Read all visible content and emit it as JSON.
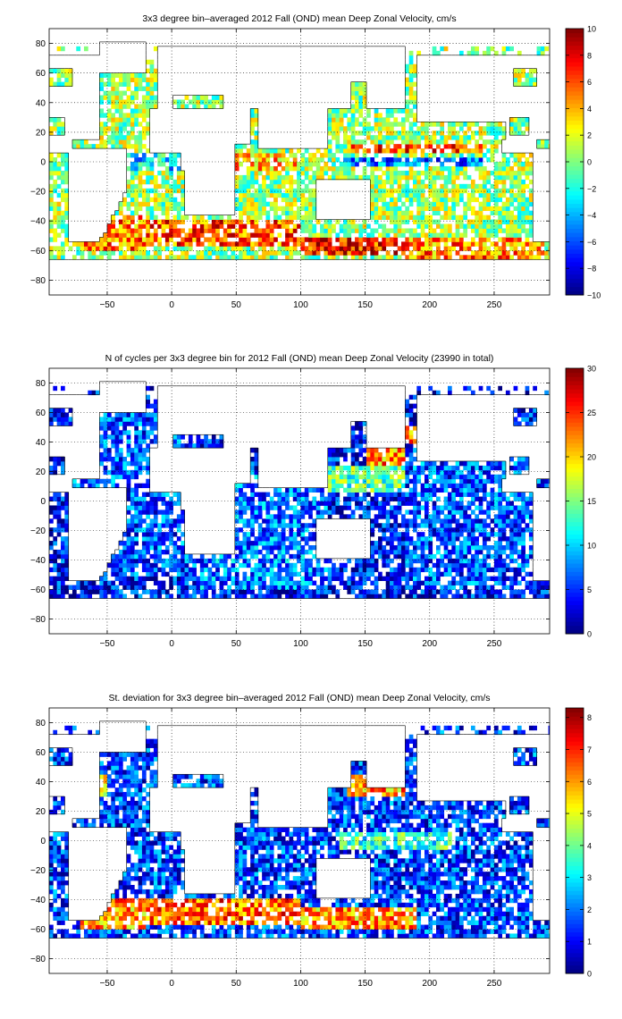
{
  "chart_data": [
    {
      "type": "heatmap",
      "title": "3x3 degree bin–averaged 2012 Fall (OND) mean Deep Zonal Velocity, cm/s",
      "xlabel": "",
      "ylabel": "",
      "xlim": [
        -95,
        293
      ],
      "ylim": [
        -90,
        90
      ],
      "xticks": [
        -50,
        0,
        50,
        100,
        150,
        200,
        250
      ],
      "xtick_labels": [
        "−50",
        "0",
        "50",
        "100",
        "150",
        "200",
        "250"
      ],
      "yticks": [
        80,
        60,
        40,
        20,
        0,
        -20,
        -40,
        -60,
        -80
      ],
      "ytick_labels": [
        "80",
        "60",
        "40",
        "20",
        "0",
        "−20",
        "−40",
        "−60",
        "−80"
      ],
      "grid": true,
      "colorbar": {
        "min": -10,
        "max": 10,
        "colormap": "jet",
        "ticks": [
          10,
          8,
          6,
          4,
          2,
          0,
          -2,
          -4,
          -6,
          -8,
          -10
        ],
        "tick_labels": [
          "10",
          "8",
          "6",
          "4",
          "2",
          "0",
          "−2",
          "−4",
          "−6",
          "−8",
          "−10"
        ]
      },
      "bin_size_deg": 3,
      "regions": [
        {
          "lon": [
            -70,
            -20
          ],
          "lat": [
            -60,
            -36
          ],
          "value": 5
        },
        {
          "lon": [
            -20,
            100
          ],
          "lat": [
            -58,
            -40
          ],
          "value": 6
        },
        {
          "lon": [
            100,
            180
          ],
          "lat": [
            -62,
            -50
          ],
          "value": 7
        },
        {
          "lon": [
            180,
            290
          ],
          "lat": [
            -65,
            -50
          ],
          "value": 5
        },
        {
          "lon": [
            130,
            240
          ],
          "lat": [
            -2,
            4
          ],
          "value": -5
        },
        {
          "lon": [
            140,
            240
          ],
          "lat": [
            6,
            12
          ],
          "value": 6
        },
        {
          "lon": [
            -60,
            20
          ],
          "lat": [
            -5,
            5
          ],
          "value": -3
        },
        {
          "lon": [
            40,
            100
          ],
          "lat": [
            -5,
            5
          ],
          "value": 4
        }
      ],
      "background_value": 0.5
    },
    {
      "type": "heatmap",
      "title": "N of cycles per 3x3 degree bin for 2012 Fall (OND) mean Deep Zonal Velocity (23990 in total)",
      "xlabel": "",
      "ylabel": "",
      "xlim": [
        -95,
        293
      ],
      "ylim": [
        -90,
        90
      ],
      "xticks": [
        -50,
        0,
        50,
        100,
        150,
        200,
        250
      ],
      "xtick_labels": [
        "−50",
        "0",
        "50",
        "100",
        "150",
        "200",
        "250"
      ],
      "yticks": [
        80,
        60,
        40,
        20,
        0,
        -20,
        -40,
        -60,
        -80
      ],
      "ytick_labels": [
        "80",
        "60",
        "40",
        "20",
        "0",
        "−20",
        "−40",
        "−60",
        "−80"
      ],
      "grid": true,
      "colorbar": {
        "min": 0,
        "max": 30,
        "colormap": "jet",
        "ticks": [
          30,
          25,
          20,
          15,
          10,
          5,
          0
        ],
        "tick_labels": [
          "30",
          "25",
          "20",
          "15",
          "10",
          "5",
          "0"
        ]
      },
      "total_cycles": 23990,
      "bin_size_deg": 3,
      "regions": [
        {
          "lon": [
            150,
            200
          ],
          "lat": [
            25,
            50
          ],
          "value": 22
        },
        {
          "lon": [
            120,
            180
          ],
          "lat": [
            5,
            25
          ],
          "value": 14
        },
        {
          "lon": [
            -80,
            20
          ],
          "lat": [
            -50,
            60
          ],
          "value": 6
        },
        {
          "lon": [
            20,
            120
          ],
          "lat": [
            -60,
            20
          ],
          "value": 7
        },
        {
          "lon": [
            180,
            290
          ],
          "lat": [
            -60,
            40
          ],
          "value": 6
        }
      ],
      "background_value": 4
    },
    {
      "type": "heatmap",
      "title": "St. deviation for 3x3 degree bin–averaged 2012 Fall (OND) mean Deep Zonal Velocity, cm/s",
      "xlabel": "",
      "ylabel": "",
      "xlim": [
        -95,
        293
      ],
      "ylim": [
        -90,
        90
      ],
      "xticks": [
        -50,
        0,
        50,
        100,
        150,
        200,
        250
      ],
      "xtick_labels": [
        "−50",
        "0",
        "50",
        "100",
        "150",
        "200",
        "250"
      ],
      "yticks": [
        80,
        60,
        40,
        20,
        0,
        -20,
        -40,
        -60,
        -80
      ],
      "ytick_labels": [
        "80",
        "60",
        "40",
        "20",
        "0",
        "−20",
        "−40",
        "−60",
        "−80"
      ],
      "grid": true,
      "colorbar": {
        "min": 0,
        "max": 8.3,
        "colormap": "jet",
        "ticks": [
          8,
          7,
          6,
          5,
          4,
          3,
          2,
          1,
          0
        ],
        "tick_labels": [
          "8",
          "7",
          "6",
          "5",
          "4",
          "3",
          "2",
          "1",
          "0"
        ]
      },
      "bin_size_deg": 3,
      "regions": [
        {
          "lon": [
            -70,
            -20
          ],
          "lat": [
            -60,
            -38
          ],
          "value": 6
        },
        {
          "lon": [
            -20,
            100
          ],
          "lat": [
            -58,
            -40
          ],
          "value": 6.5
        },
        {
          "lon": [
            100,
            190
          ],
          "lat": [
            -60,
            -45
          ],
          "value": 6
        },
        {
          "lon": [
            135,
            180
          ],
          "lat": [
            30,
            45
          ],
          "value": 6
        },
        {
          "lon": [
            -80,
            -50
          ],
          "lat": [
            30,
            45
          ],
          "value": 5
        },
        {
          "lon": [
            130,
            220
          ],
          "lat": [
            -5,
            5
          ],
          "value": 3.5
        }
      ],
      "background_value": 1.5
    }
  ]
}
